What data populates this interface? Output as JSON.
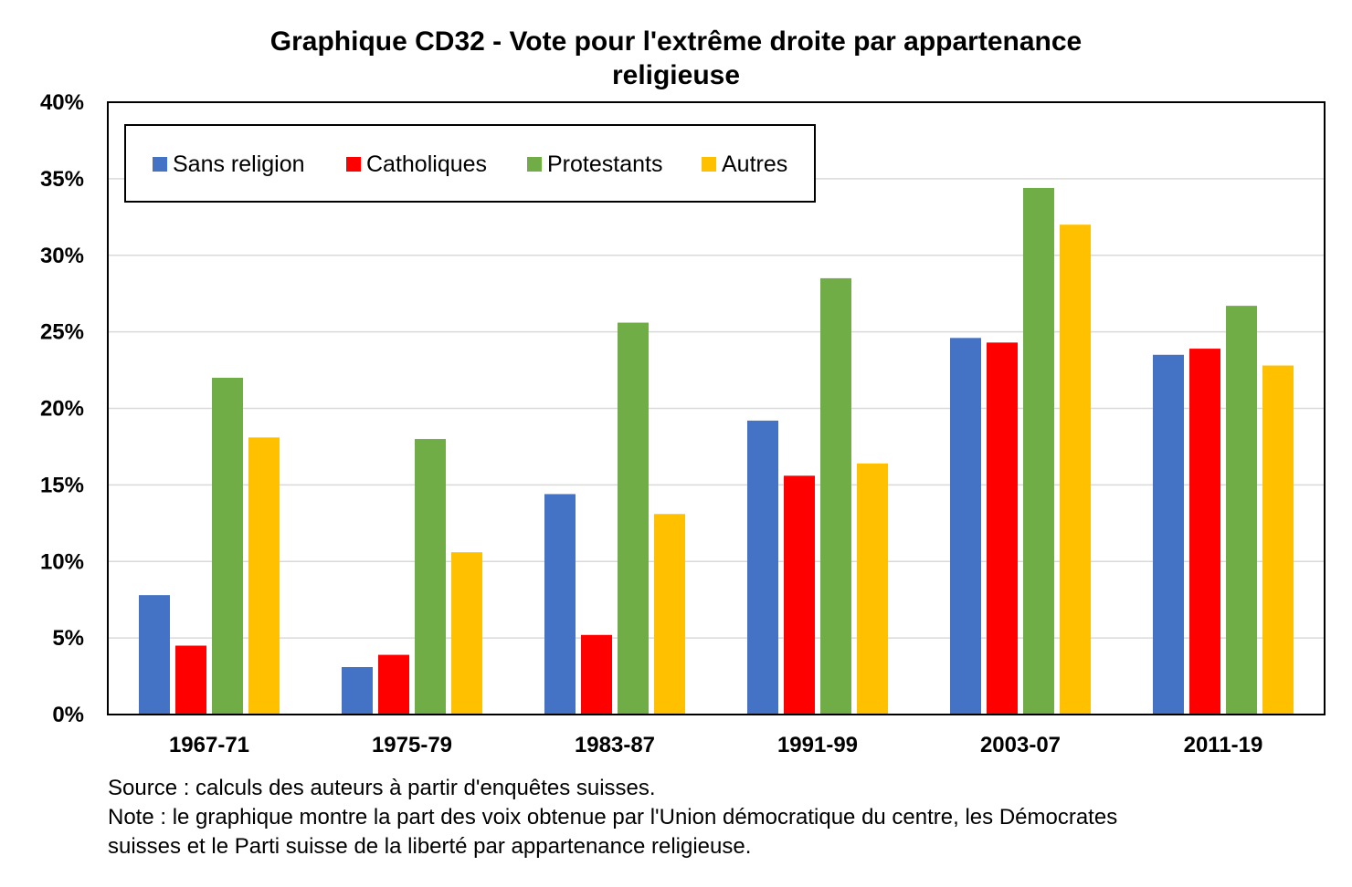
{
  "chart_data": {
    "type": "bar",
    "title_lines": [
      "Graphique CD32 - Vote pour l'extrême droite par appartenance",
      "religieuse"
    ],
    "xlabel": "",
    "ylabel": "",
    "categories": [
      "1967-71",
      "1975-79",
      "1983-87",
      "1991-99",
      "2003-07",
      "2011-19"
    ],
    "series": [
      {
        "name": "Sans religion",
        "color": "#4472C4",
        "values": [
          0.078,
          0.031,
          0.144,
          0.192,
          0.246,
          0.235
        ]
      },
      {
        "name": "Catholiques",
        "color": "#FF0000",
        "values": [
          0.045,
          0.039,
          0.052,
          0.156,
          0.243,
          0.239
        ]
      },
      {
        "name": "Protestants",
        "color": "#70AD47",
        "values": [
          0.22,
          0.18,
          0.256,
          0.285,
          0.344,
          0.267
        ]
      },
      {
        "name": "Autres",
        "color": "#FFC000",
        "values": [
          0.181,
          0.106,
          0.131,
          0.164,
          0.32,
          0.228
        ]
      }
    ],
    "ylim": [
      0,
      0.4
    ],
    "yticks": [
      0,
      0.05,
      0.1,
      0.15,
      0.2,
      0.25,
      0.3,
      0.35,
      0.4
    ],
    "ytick_labels": [
      "0%",
      "5%",
      "10%",
      "15%",
      "20%",
      "25%",
      "30%",
      "35%",
      "40%"
    ],
    "grid": true,
    "legend": "top-left"
  },
  "notes": {
    "source": "Source : calculs des auteurs à partir d'enquêtes suisses.",
    "note_line1": "Note : le graphique montre la part des voix obtenue par l'Union démocratique du centre, les Démocrates",
    "note_line2": "suisses et le Parti suisse de la liberté par appartenance religieuse."
  }
}
